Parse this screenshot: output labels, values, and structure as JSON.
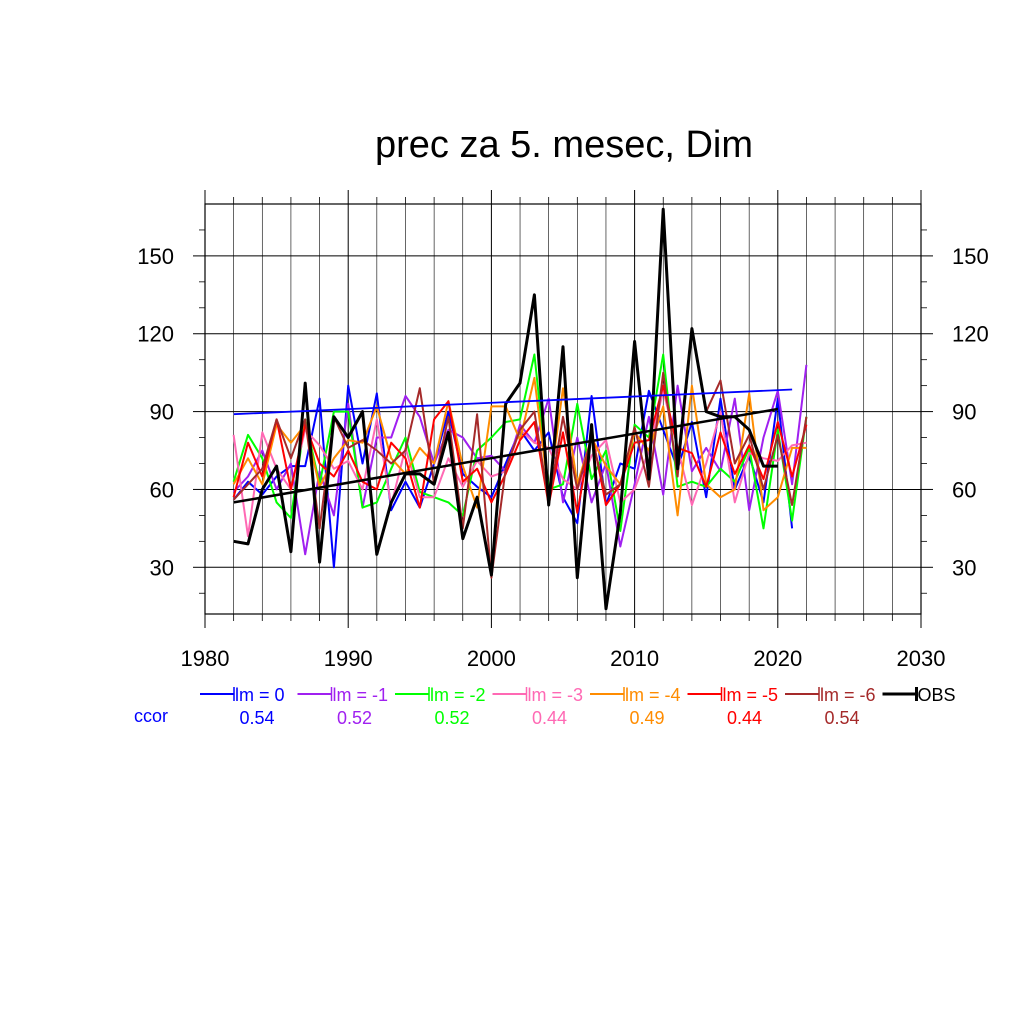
{
  "chart_data": {
    "type": "line",
    "title": "prec za 5. mesec, Dim",
    "xlabel": "",
    "ylabel": "",
    "xlim": [
      1980,
      2030
    ],
    "ylim": [
      12,
      170
    ],
    "x_ticks": [
      1980,
      1990,
      2000,
      2010,
      2020,
      2030
    ],
    "y_ticks": [
      30,
      60,
      90,
      120,
      150
    ],
    "grid": true,
    "x": [
      1982,
      1983,
      1984,
      1985,
      1986,
      1987,
      1988,
      1989,
      1990,
      1991,
      1992,
      1993,
      1994,
      1995,
      1996,
      1997,
      1998,
      1999,
      2000,
      2001,
      2002,
      2003,
      2004,
      2005,
      2006,
      2007,
      2008,
      2009,
      2010,
      2011,
      2012,
      2013,
      2014,
      2015,
      2016,
      2017,
      2018,
      2019,
      2020,
      2021,
      2022
    ],
    "series": [
      {
        "name": "lm = 0",
        "color": "#0000ff",
        "values": [
          56,
          63,
          58,
          65,
          69,
          69,
          95,
          30,
          100,
          70,
          97,
          52,
          63,
          53,
          70,
          90,
          66,
          61,
          57,
          70,
          83,
          75,
          82,
          57,
          47,
          96,
          54,
          70,
          68,
          98,
          83,
          68,
          86,
          57,
          95,
          60,
          73,
          55,
          95,
          45,
          null
        ]
      },
      {
        "name": "lm = -1",
        "color": "#a020f0",
        "values": [
          59,
          65,
          75,
          60,
          70,
          35,
          67,
          50,
          93,
          53,
          80,
          80,
          96,
          88,
          70,
          83,
          80,
          72,
          73,
          67,
          85,
          78,
          95,
          55,
          80,
          55,
          70,
          38,
          62,
          88,
          58,
          100,
          67,
          76,
          67,
          95,
          52,
          80,
          98,
          62,
          108
        ]
      },
      {
        "name": "lm = -2",
        "color": "#00ff00",
        "values": [
          63,
          81,
          72,
          55,
          49,
          87,
          62,
          90,
          90,
          53,
          55,
          68,
          80,
          59,
          57,
          55,
          50,
          75,
          80,
          86,
          87,
          112,
          60,
          62,
          93,
          64,
          75,
          44,
          85,
          80,
          112,
          61,
          63,
          61,
          68,
          63,
          76,
          45,
          83,
          48,
          88
        ]
      },
      {
        "name": "lm = -3",
        "color": "#ff69b4",
        "values": [
          81,
          42,
          82,
          68,
          60,
          83,
          77,
          68,
          71,
          60,
          87,
          54,
          76,
          57,
          57,
          72,
          61,
          71,
          65,
          67,
          83,
          78,
          76,
          64,
          60,
          73,
          79,
          55,
          60,
          75,
          98,
          76,
          54,
          70,
          90,
          55,
          74,
          72,
          71,
          77,
          78
        ]
      },
      {
        "name": "lm = -4",
        "color": "#ff8c00",
        "values": [
          62,
          72,
          62,
          85,
          78,
          85,
          61,
          72,
          79,
          78,
          92,
          72,
          66,
          76,
          70,
          94,
          69,
          53,
          92,
          92,
          79,
          103,
          58,
          99,
          62,
          80,
          69,
          62,
          82,
          75,
          92,
          50,
          100,
          62,
          57,
          60,
          97,
          52,
          57,
          76,
          76
        ]
      },
      {
        "name": "lm = -5",
        "color": "#ff0000",
        "values": [
          57,
          78,
          65,
          87,
          60,
          85,
          70,
          65,
          75,
          63,
          60,
          78,
          72,
          53,
          87,
          94,
          63,
          68,
          55,
          66,
          79,
          86,
          54,
          82,
          51,
          82,
          54,
          62,
          78,
          79,
          100,
          76,
          74,
          61,
          82,
          66,
          77,
          64,
          86,
          65,
          85
        ]
      },
      {
        "name": "lm = -6",
        "color": "#a52a2a",
        "values": [
          56,
          62,
          68,
          87,
          72,
          87,
          45,
          88,
          76,
          79,
          75,
          70,
          75,
          99,
          62,
          88,
          45,
          89,
          26,
          68,
          83,
          90,
          55,
          88,
          60,
          80,
          58,
          62,
          84,
          61,
          105,
          65,
          122,
          90,
          102,
          70,
          81,
          60,
          81,
          54,
          88
        ]
      },
      {
        "name": "OBS",
        "color": "#000000",
        "values": [
          40,
          39,
          60,
          69,
          36,
          101,
          32,
          88,
          80,
          90,
          35,
          55,
          66,
          66,
          62,
          82,
          41,
          57,
          27,
          93,
          101,
          135,
          54,
          115,
          26,
          85,
          14,
          51,
          117,
          64,
          168,
          68,
          122,
          90,
          88,
          88,
          83,
          69,
          69,
          null,
          null
        ]
      }
    ],
    "trend_lines": [
      {
        "series": "lm = 0",
        "color": "#0000ff",
        "x": [
          1982,
          2021
        ],
        "y": [
          89,
          98.5
        ]
      },
      {
        "series": "OBS",
        "color": "#000000",
        "x": [
          1982,
          2020
        ],
        "y": [
          55,
          91
        ]
      }
    ],
    "ccor": {
      "label": "ccor",
      "values": [
        "0.54",
        "0.52",
        "0.52",
        "0.44",
        "0.49",
        "0.44",
        "0.54"
      ]
    }
  }
}
